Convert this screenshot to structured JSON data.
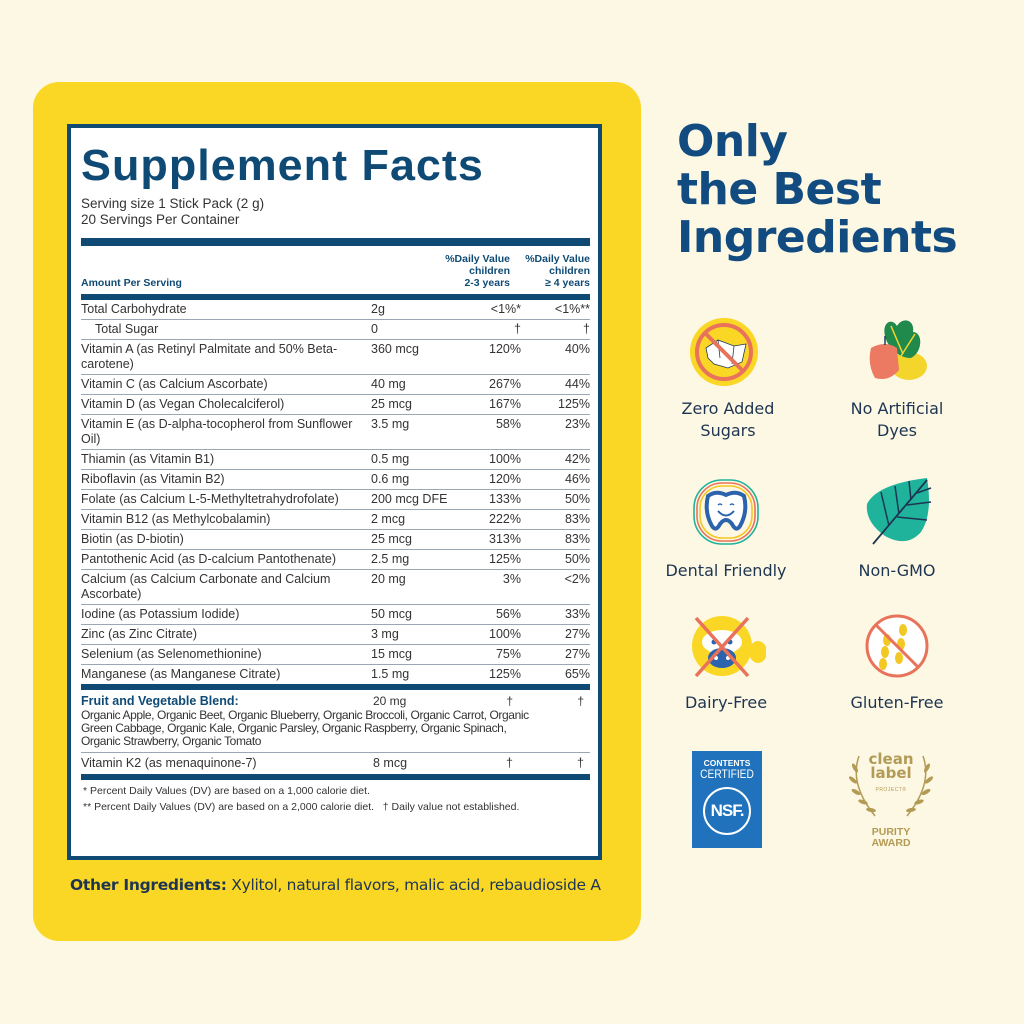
{
  "label": {
    "title": "Supplement Facts",
    "serving_size": "Serving size 1 Stick Pack (2 g)",
    "servings_per_container": "20 Servings Per Container",
    "header": {
      "amount_per_serving": "Amount Per Serving",
      "dv_col1": [
        "%Daily Value",
        "children",
        "2-3 years"
      ],
      "dv_col2": [
        "%Daily Value",
        "children",
        "≥ 4 years"
      ]
    },
    "rows": [
      {
        "name": "Total Carbohydrate",
        "amount": "2g",
        "dv1": "<1%*",
        "dv2": "<1%**"
      },
      {
        "name": "Total Sugar",
        "amount": "0",
        "dv1": "†",
        "dv2": "†",
        "indent": true
      },
      {
        "name": "Vitamin A (as Retinyl Palmitate and 50% Beta-carotene)",
        "amount": "360 mcg",
        "dv1": "120%",
        "dv2": "40%"
      },
      {
        "name": "Vitamin C (as Calcium Ascorbate)",
        "amount": "40 mg",
        "dv1": "267%",
        "dv2": "44%"
      },
      {
        "name": "Vitamin D (as Vegan Cholecalciferol)",
        "amount": "25 mcg",
        "dv1": "167%",
        "dv2": "125%"
      },
      {
        "name": "Vitamin E (as D-alpha-tocopherol from Sunflower Oil)",
        "amount": "3.5 mg",
        "dv1": "58%",
        "dv2": "23%"
      },
      {
        "name": "Thiamin (as Vitamin B1)",
        "amount": "0.5 mg",
        "dv1": "100%",
        "dv2": "42%"
      },
      {
        "name": "Riboflavin (as Vitamin B2)",
        "amount": "0.6 mg",
        "dv1": "120%",
        "dv2": "46%"
      },
      {
        "name": "Folate (as Calcium L-5-Methyltetrahydrofolate)",
        "amount": "200 mcg DFE",
        "dv1": "133%",
        "dv2": "50%"
      },
      {
        "name": "Vitamin B12 (as Methylcobalamin)",
        "amount": "2 mcg",
        "dv1": "222%",
        "dv2": "83%"
      },
      {
        "name": "Biotin (as D-biotin)",
        "amount": "25 mcg",
        "dv1": "313%",
        "dv2": "83%"
      },
      {
        "name": "Pantothenic Acid (as D-calcium Pantothenate)",
        "amount": "2.5 mg",
        "dv1": "125%",
        "dv2": "50%"
      },
      {
        "name": "Calcium (as Calcium Carbonate and Calcium Ascorbate)",
        "amount": "20 mg",
        "dv1": "3%",
        "dv2": "<2%"
      },
      {
        "name": "Iodine (as Potassium Iodide)",
        "amount": "50 mcg",
        "dv1": "56%",
        "dv2": "33%"
      },
      {
        "name": "Zinc (as Zinc Citrate)",
        "amount": "3 mg",
        "dv1": "100%",
        "dv2": "27%"
      },
      {
        "name": "Selenium (as Selenomethionine)",
        "amount": "15 mcg",
        "dv1": "75%",
        "dv2": "27%"
      },
      {
        "name": "Manganese (as Manganese Citrate)",
        "amount": "1.5 mg",
        "dv1": "125%",
        "dv2": "65%"
      }
    ],
    "blend": {
      "name": "Fruit and Vegetable Blend:",
      "amount": "20 mg",
      "dv1": "†",
      "dv2": "†",
      "ingredients": "Organic Apple, Organic Beet, Organic Blueberry, Organic Broccoli, Organic Carrot, Organic Green Cabbage, Organic Kale, Organic Parsley, Organic Raspberry, Organic Spinach, Organic Strawberry, Organic Tomato"
    },
    "k2": {
      "name": "Vitamin K2 (as menaquinone-7)",
      "amount": "8 mcg",
      "dv1": "†",
      "dv2": "†"
    },
    "footnotes": [
      "* Percent Daily Values (DV) are based on a 1,000 calorie diet.",
      "** Percent Daily Values (DV) are based on a 2,000 calorie diet.   † Daily value not established."
    ]
  },
  "other_ingredients": {
    "label": "Other Ingredients:",
    "value": " Xylitol, natural flavors, malic acid, rebaudioside A"
  },
  "hero": {
    "lines": [
      "Only",
      "the Best",
      "Ingredients"
    ]
  },
  "features": [
    {
      "icon": "no-sugar-icon",
      "lines": [
        "Zero Added",
        "Sugars"
      ]
    },
    {
      "icon": "fruit-veg-icon",
      "lines": [
        "No Artificial",
        "Dyes"
      ]
    },
    {
      "icon": "happy-tooth-icon",
      "lines": [
        "Dental Friendly"
      ]
    },
    {
      "icon": "leaf-icon",
      "lines": [
        "Non-GMO"
      ]
    },
    {
      "icon": "no-cow-icon",
      "lines": [
        "Dairy-Free"
      ]
    },
    {
      "icon": "no-wheat-icon",
      "lines": [
        "Gluten-Free"
      ]
    }
  ],
  "badges": {
    "nsf": {
      "line1": "CONTENTS",
      "line2": "CERTIFIED",
      "mark": "NSF."
    },
    "clean_label": {
      "line1": "clean",
      "line2": "label",
      "line3": "PROJECT®",
      "line4": "PURITY",
      "line5": "AWARD"
    }
  },
  "colors": {
    "background": "#fdf8e3",
    "panel_yellow": "#fbd725",
    "label_blue": "#0e4a74",
    "hero_blue": "#124b80",
    "nsf_blue": "#1f72bb",
    "gold": "#b39a55",
    "coral": "#e8735a",
    "teal": "#1fb39c"
  }
}
